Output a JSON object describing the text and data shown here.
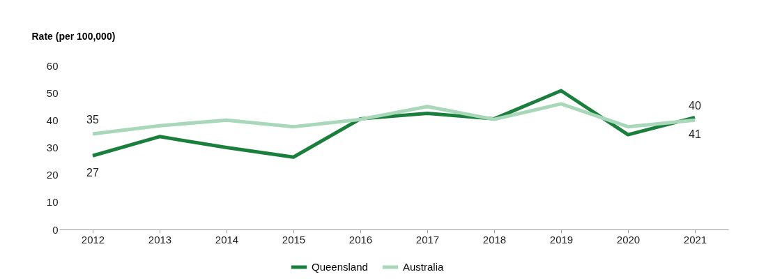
{
  "chart_data": {
    "type": "line",
    "ylabel": "Rate (per 100,000)",
    "categories": [
      "2012",
      "2013",
      "2014",
      "2015",
      "2016",
      "2017",
      "2018",
      "2019",
      "2020",
      "2021"
    ],
    "series": [
      {
        "name": "Queensland",
        "color": "#1a7f3c",
        "values": [
          27,
          34,
          30,
          26.5,
          40.5,
          42.5,
          40.5,
          50.8,
          34.7,
          41
        ],
        "value_labels": [
          "27",
          null,
          null,
          null,
          null,
          null,
          null,
          null,
          null,
          "41"
        ]
      },
      {
        "name": "Australia",
        "color": "#a8d8b9",
        "values": [
          35,
          38,
          40,
          37.6,
          40.3,
          45,
          40.3,
          46,
          37.6,
          40
        ],
        "value_labels": [
          "35",
          null,
          null,
          null,
          null,
          null,
          null,
          null,
          null,
          "40"
        ]
      }
    ],
    "ylim": [
      0,
      60
    ],
    "yticks": [
      0,
      10,
      20,
      30,
      40,
      50,
      60
    ],
    "grid": false,
    "legend": "bottom",
    "marker": "none",
    "line_style": "solid"
  }
}
